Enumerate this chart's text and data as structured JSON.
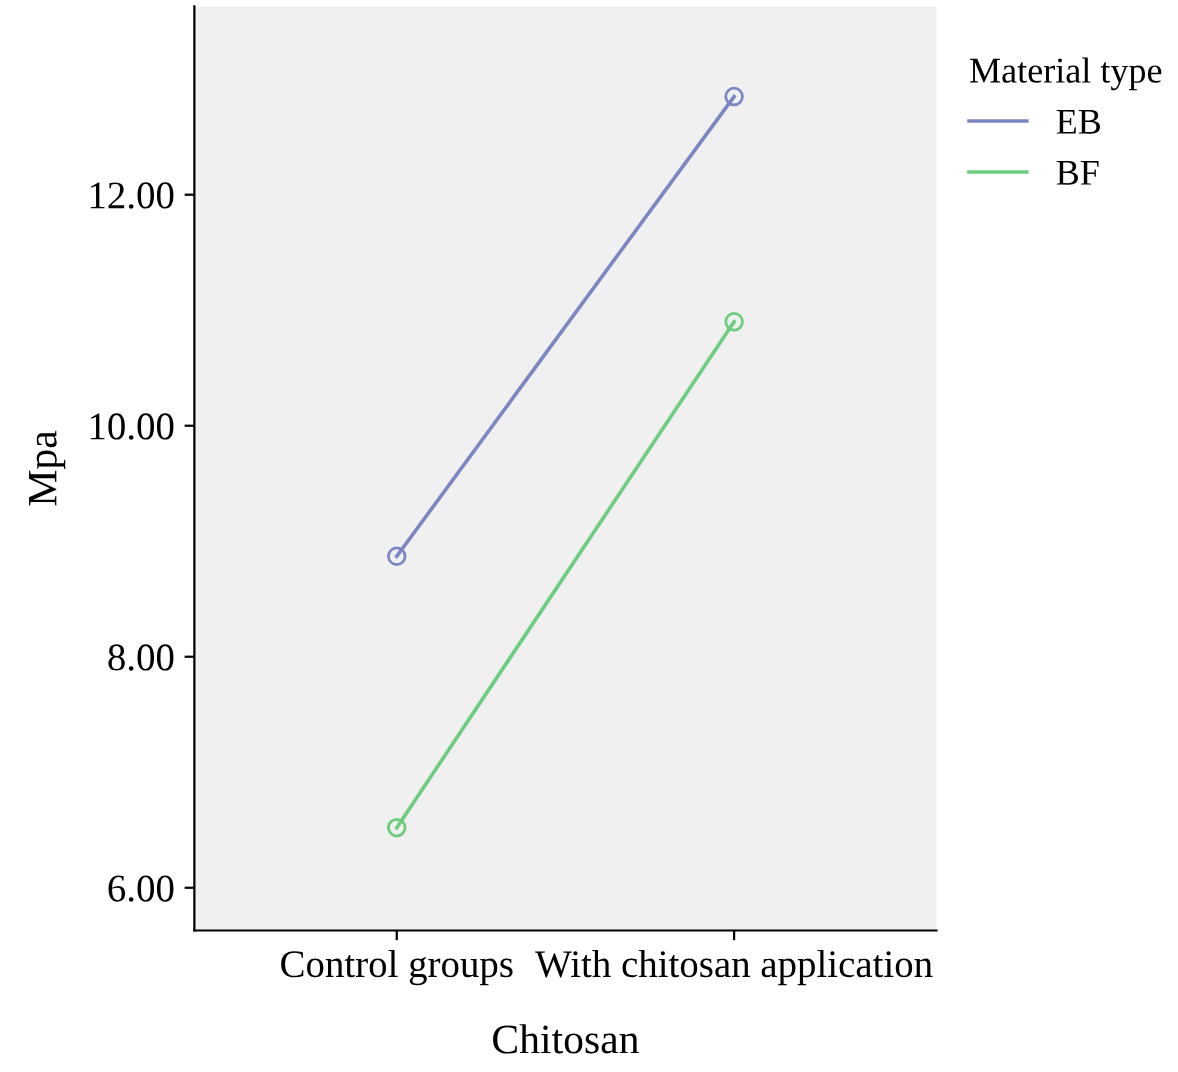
{
  "chart_data": {
    "type": "line",
    "xlabel": "Chitosan",
    "ylabel": "Mpa",
    "legend_title": "Material type",
    "categories": [
      "Control groups",
      "With chitosan application"
    ],
    "series": [
      {
        "name": "EB",
        "color": "#7b86c2",
        "values": [
          8.87,
          12.85
        ]
      },
      {
        "name": "BF",
        "color": "#6dcc7d",
        "values": [
          6.52,
          10.9
        ]
      }
    ],
    "ylim": [
      5.63,
      13.63
    ],
    "yticks": [
      {
        "value": 6,
        "label": "6.00"
      },
      {
        "value": 8,
        "label": "8.00"
      },
      {
        "value": 10,
        "label": "10.00"
      },
      {
        "value": 12,
        "label": "12.00"
      }
    ],
    "marker": "circle",
    "line_style": "solid",
    "legend": "top right",
    "grid": false
  }
}
